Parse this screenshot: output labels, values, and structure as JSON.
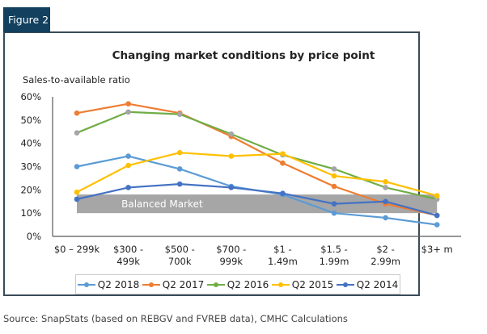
{
  "figure_label": "Figure 2",
  "source_note": "Source: SnapStats (based on REBGV and FVREB data), CMHC Calculations",
  "chart_data": {
    "type": "line",
    "title": "Changing market conditions by price point",
    "xlabel": "",
    "ylabel": "Sales-to-available ratio",
    "ylim": [
      0,
      60
    ],
    "yticks": [
      "0%",
      "10%",
      "20%",
      "30%",
      "40%",
      "50%",
      "60%"
    ],
    "ytick_values": [
      0,
      10,
      20,
      30,
      40,
      50,
      60
    ],
    "grid": false,
    "legend_position": "bottom",
    "categories": [
      [
        "$0 – 299k",
        ""
      ],
      [
        "$300 -",
        "499k"
      ],
      [
        "$500 -",
        "700k"
      ],
      [
        "$700 -",
        "999k"
      ],
      [
        "$1 -",
        "1.49m"
      ],
      [
        "$1.5 -",
        "1.99m"
      ],
      [
        "$2 -",
        "2.99m"
      ],
      [
        "$3+ m",
        ""
      ]
    ],
    "band": {
      "label": "Balanced Market",
      "from": 10,
      "to": 18,
      "color": "#a6a6a6"
    },
    "series": [
      {
        "name": "Q2 2018",
        "color": "#5b9bd5",
        "values": [
          30,
          34.5,
          29,
          21.5,
          18,
          10,
          8,
          5
        ]
      },
      {
        "name": "Q2 2017",
        "color": "#ed7d31",
        "values": [
          53,
          57,
          53,
          43,
          31.5,
          21.5,
          14,
          9
        ]
      },
      {
        "name": "Q2 2016",
        "color": "#70ad47",
        "marker_color": "#a5a5a5",
        "values": [
          44.5,
          53.5,
          52.5,
          44,
          35,
          29,
          21,
          16
        ]
      },
      {
        "name": "Q2 2015",
        "color": "#ffc000",
        "values": [
          19,
          30.5,
          36,
          34.5,
          35.5,
          26,
          23.5,
          17.5
        ]
      },
      {
        "name": "Q2 2014",
        "color": "#4472c4",
        "values": [
          16,
          21,
          22.5,
          21,
          18.5,
          14,
          15,
          9
        ]
      }
    ]
  }
}
